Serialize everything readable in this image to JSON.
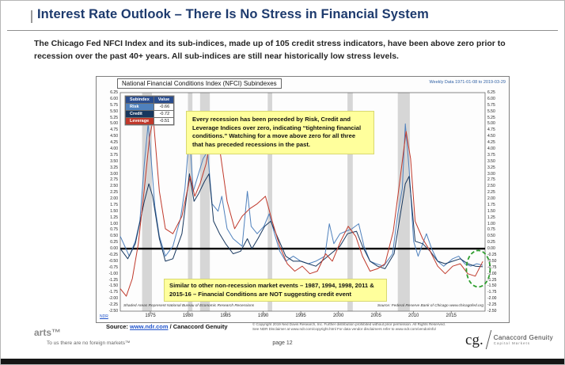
{
  "slide": {
    "title": "Interest Rate Outlook – There Is No Stress in Financial System",
    "summary": "The Chicago Fed NFCI Index and its sub-indices, made up of 105 credit stress indicators, have been above zero prior to recession over the past 40+ years.  All sub-indices are still near historically low stress levels."
  },
  "chart": {
    "title": "National Financial Conditions Index (NFCI) Subindexes",
    "date_range_label": "Weekly Data 1971-01-08 to 2019-03-29",
    "legend_headers": [
      "Subindex",
      "Value"
    ],
    "callout_top": "Every recession has been preceded by Risk, Credit and Leverage Indices over zero, indicating “tightening financial conditions.”  Watching for a move above zero for all three that has preceded recessions in the past.",
    "callout_bottom": "Similar to other non-recession market events – 1987, 1994, 1998, 2011 & 2015-16 – Financial Conditions are NOT suggesting credit event",
    "shading_note": "Shaded Areas Represent National Bureau of Economic Research Recessions",
    "source_note": "Source:  Federal Reserve Bank of Chicago www.chicagofed.org",
    "ndr_mark": "NDR"
  },
  "chart_data": {
    "type": "line",
    "title": "National Financial Conditions Index (NFCI) Subindexes",
    "subtitle": "Weekly Data 1971-01-08 to 2019-03-29",
    "xlabel": "",
    "ylabel": "",
    "x_range": [
      1971,
      2019.5
    ],
    "ylim": [
      -2.5,
      6.25
    ],
    "grid": false,
    "legend_position": "top-left",
    "y_ticks": [
      "6.25",
      "6.00",
      "5.75",
      "5.50",
      "5.25",
      "5.00",
      "4.75",
      "4.50",
      "4.25",
      "4.00",
      "3.75",
      "3.50",
      "3.25",
      "3.00",
      "2.75",
      "2.50",
      "2.25",
      "2.00",
      "1.75",
      "1.50",
      "1.25",
      "1.00",
      "0.75",
      "0.50",
      "0.25",
      "0.00",
      "-0.25",
      "-0.50",
      "-0.75",
      "-1.00",
      "-1.25",
      "-1.50",
      "-1.75",
      "-2.00",
      "-2.25",
      "-2.50"
    ],
    "x_ticks": [
      1975,
      1980,
      1985,
      1990,
      1995,
      2000,
      2005,
      2010,
      2015
    ],
    "zero_line": 0,
    "recessions": [
      [
        1973.9,
        1975.2
      ],
      [
        1980.0,
        1980.6
      ],
      [
        1981.6,
        1982.9
      ],
      [
        1990.6,
        1991.2
      ],
      [
        2001.2,
        2001.9
      ],
      [
        2007.9,
        2009.5
      ]
    ],
    "highlight_circle": {
      "x": 2018.6,
      "y": -0.8
    },
    "series": [
      {
        "name": "Risk",
        "color": "#4f81bd",
        "value": "-0.66",
        "points": [
          [
            1971,
            0.5
          ],
          [
            1971.6,
            0.1
          ],
          [
            1972.2,
            -0.3
          ],
          [
            1973,
            0.3
          ],
          [
            1973.6,
            1.1
          ],
          [
            1974.2,
            3.4
          ],
          [
            1974.7,
            5.0
          ],
          [
            1975.1,
            3.6
          ],
          [
            1975.6,
            1.7
          ],
          [
            1976.2,
            0.5
          ],
          [
            1977,
            -0.3
          ],
          [
            1978,
            0.1
          ],
          [
            1979,
            1.2
          ],
          [
            1979.6,
            2.4
          ],
          [
            1980.2,
            4.6
          ],
          [
            1980.7,
            2.3
          ],
          [
            1981.3,
            2.9
          ],
          [
            1982,
            3.6
          ],
          [
            1982.6,
            3.9
          ],
          [
            1983.2,
            1.8
          ],
          [
            1984,
            1.5
          ],
          [
            1984.5,
            2.1
          ],
          [
            1985.2,
            0.8
          ],
          [
            1986,
            0.4
          ],
          [
            1987.2,
            0.1
          ],
          [
            1987.9,
            2.3
          ],
          [
            1988.4,
            0.9
          ],
          [
            1989.2,
            0.6
          ],
          [
            1990.1,
            0.9
          ],
          [
            1990.8,
            1.4
          ],
          [
            1991.5,
            0.6
          ],
          [
            1992.2,
            -0.1
          ],
          [
            1993,
            -0.5
          ],
          [
            1994,
            -0.3
          ],
          [
            1995,
            -0.5
          ],
          [
            1996,
            -0.6
          ],
          [
            1997,
            -0.5
          ],
          [
            1998.2,
            -0.3
          ],
          [
            1998.8,
            1.0
          ],
          [
            1999.4,
            0.2
          ],
          [
            2000.2,
            0.6
          ],
          [
            2001,
            0.7
          ],
          [
            2001.8,
            0.8
          ],
          [
            2002.7,
            1.0
          ],
          [
            2003.4,
            0.1
          ],
          [
            2004.2,
            -0.5
          ],
          [
            2005,
            -0.6
          ],
          [
            2006,
            -0.7
          ],
          [
            2007.2,
            -0.2
          ],
          [
            2007.9,
            1.4
          ],
          [
            2008.5,
            2.4
          ],
          [
            2008.9,
            5.0
          ],
          [
            2009.4,
            3.2
          ],
          [
            2010,
            0.3
          ],
          [
            2010.6,
            -0.3
          ],
          [
            2011.7,
            0.6
          ],
          [
            2012.4,
            0.0
          ],
          [
            2013.2,
            -0.5
          ],
          [
            2014,
            -0.7
          ],
          [
            2015.2,
            -0.4
          ],
          [
            2016,
            -0.3
          ],
          [
            2016.8,
            -0.6
          ],
          [
            2017.6,
            -0.7
          ],
          [
            2018.4,
            -0.6
          ],
          [
            2019.2,
            -0.66
          ]
        ]
      },
      {
        "name": "Credit",
        "color": "#17375e",
        "value": "-0.72",
        "points": [
          [
            1971,
            0.0
          ],
          [
            1972,
            -0.4
          ],
          [
            1973,
            0.2
          ],
          [
            1974.2,
            1.9
          ],
          [
            1974.8,
            2.6
          ],
          [
            1975.3,
            2.1
          ],
          [
            1976.2,
            0.4
          ],
          [
            1977,
            -0.5
          ],
          [
            1978,
            -0.4
          ],
          [
            1979.2,
            0.6
          ],
          [
            1980.2,
            3.0
          ],
          [
            1980.8,
            1.9
          ],
          [
            1981.4,
            2.2
          ],
          [
            1982.2,
            2.7
          ],
          [
            1982.8,
            3.0
          ],
          [
            1983.4,
            1.1
          ],
          [
            1984.2,
            0.6
          ],
          [
            1985,
            0.2
          ],
          [
            1986,
            -0.2
          ],
          [
            1987,
            -0.1
          ],
          [
            1987.9,
            0.4
          ],
          [
            1988.5,
            0.0
          ],
          [
            1989.3,
            0.4
          ],
          [
            1990.2,
            0.9
          ],
          [
            1991,
            1.1
          ],
          [
            1992,
            0.4
          ],
          [
            1993,
            -0.3
          ],
          [
            1994,
            -0.5
          ],
          [
            1995,
            -0.5
          ],
          [
            1996,
            -0.6
          ],
          [
            1997,
            -0.7
          ],
          [
            1998.2,
            -0.4
          ],
          [
            1999,
            -0.2
          ],
          [
            2000.2,
            0.1
          ],
          [
            2001.2,
            0.6
          ],
          [
            2002.4,
            0.7
          ],
          [
            2003.2,
            0.1
          ],
          [
            2004.2,
            -0.5
          ],
          [
            2005.2,
            -0.7
          ],
          [
            2006.2,
            -0.8
          ],
          [
            2007.4,
            -0.2
          ],
          [
            2008.2,
            1.3
          ],
          [
            2008.9,
            2.6
          ],
          [
            2009.4,
            2.9
          ],
          [
            2010.2,
            0.3
          ],
          [
            2011.2,
            0.2
          ],
          [
            2012.2,
            -0.1
          ],
          [
            2013.2,
            -0.5
          ],
          [
            2014.2,
            -0.6
          ],
          [
            2015.2,
            -0.5
          ],
          [
            2016.2,
            -0.4
          ],
          [
            2017.2,
            -0.6
          ],
          [
            2018.2,
            -0.7
          ],
          [
            2019.2,
            -0.72
          ]
        ]
      },
      {
        "name": "Leverage",
        "color": "#c0392b",
        "value": "-0.51",
        "points": [
          [
            1971,
            -1.6
          ],
          [
            1971.8,
            -1.9
          ],
          [
            1972.6,
            -1.2
          ],
          [
            1973.4,
            0.2
          ],
          [
            1974.2,
            2.4
          ],
          [
            1974.9,
            4.5
          ],
          [
            1975.4,
            5.2
          ],
          [
            1976.2,
            2.3
          ],
          [
            1977,
            0.8
          ],
          [
            1978,
            0.6
          ],
          [
            1979.2,
            1.3
          ],
          [
            1980.3,
            2.9
          ],
          [
            1980.9,
            2.1
          ],
          [
            1981.6,
            2.6
          ],
          [
            1982.4,
            3.4
          ],
          [
            1983.2,
            4.7
          ],
          [
            1983.7,
            5.1
          ],
          [
            1984.4,
            3.6
          ],
          [
            1985.2,
            1.9
          ],
          [
            1986.2,
            0.8
          ],
          [
            1987.2,
            1.3
          ],
          [
            1988.2,
            1.6
          ],
          [
            1989.2,
            1.8
          ],
          [
            1990.3,
            2.1
          ],
          [
            1991.2,
            1.1
          ],
          [
            1992.2,
            0.1
          ],
          [
            1993.2,
            -0.6
          ],
          [
            1994.2,
            -0.9
          ],
          [
            1995.2,
            -0.7
          ],
          [
            1996.2,
            -1.0
          ],
          [
            1997.2,
            -0.9
          ],
          [
            1998.3,
            -0.2
          ],
          [
            1999.2,
            -0.5
          ],
          [
            2000.3,
            0.3
          ],
          [
            2001.3,
            0.9
          ],
          [
            2002.3,
            0.5
          ],
          [
            2003.2,
            -0.3
          ],
          [
            2004.2,
            -0.9
          ],
          [
            2005.2,
            -0.8
          ],
          [
            2006.2,
            -0.6
          ],
          [
            2007.3,
            0.7
          ],
          [
            2008.2,
            2.8
          ],
          [
            2009,
            4.7
          ],
          [
            2009.6,
            3.6
          ],
          [
            2010.2,
            1.1
          ],
          [
            2011.2,
            0.4
          ],
          [
            2012.2,
            -0.1
          ],
          [
            2013.2,
            -0.7
          ],
          [
            2014.2,
            -1.0
          ],
          [
            2015.2,
            -0.7
          ],
          [
            2016.2,
            -0.6
          ],
          [
            2017.2,
            -1.0
          ],
          [
            2018.2,
            -1.1
          ],
          [
            2019.2,
            -0.51
          ]
        ]
      }
    ]
  },
  "source": {
    "label": "Source: ",
    "link": "www.ndr.com",
    "suffix": " / Canaccord Genuity"
  },
  "copyright": {
    "line1": "© Copyright 2019 Ned Davis Research, Inc. Further distribution prohibited without prior permission. All Rights Reserved.",
    "line2": "See NDR Disclaimer at www.ndr.com/copyright.html  For data vendor disclaimers refer to www.ndr.com/vendorinfo/"
  },
  "footer": {
    "watermark": "arts™",
    "tagline": "To us there are no foreign markets™",
    "page": "page 12",
    "logo_cg": "cg.",
    "logo_name": "Canaccord Genuity",
    "logo_sub": "Capital Markets"
  }
}
